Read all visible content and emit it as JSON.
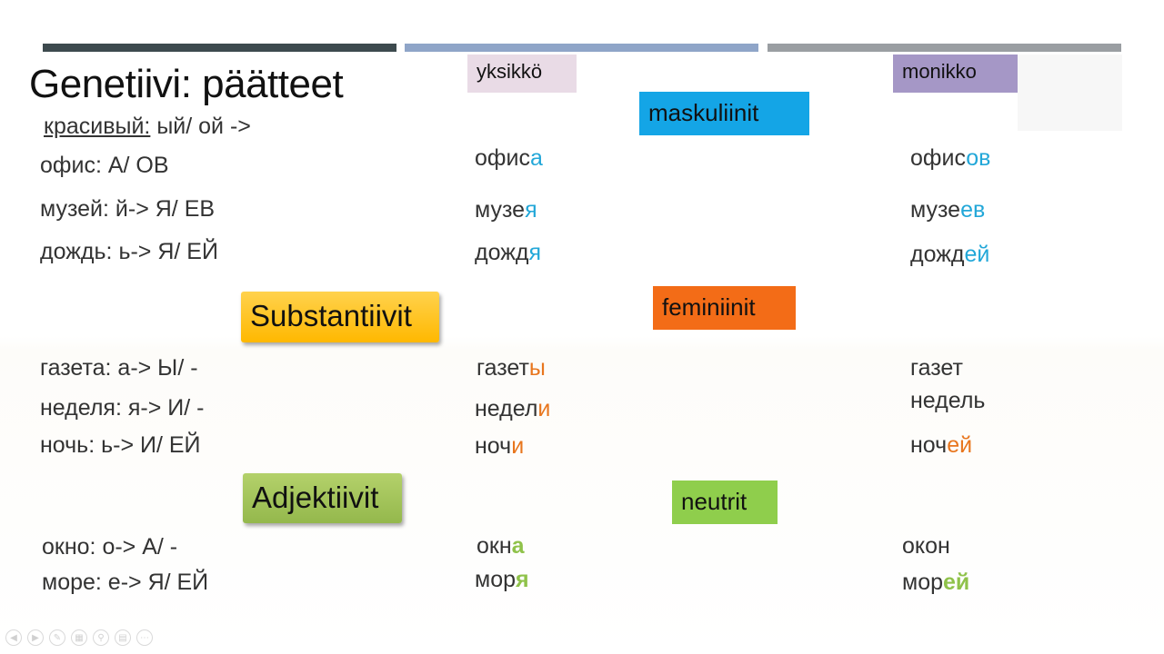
{
  "title": "Genetiivi: päätteet",
  "headers": {
    "singular": "yksikkö",
    "plural": "monikko"
  },
  "categories": {
    "nouns": "Substantiivit",
    "adjectives": "Adjektiivit"
  },
  "genders": {
    "masculine": "maskuliinit",
    "feminine": "feminiinit",
    "neuter": "neutrit"
  },
  "adjective_rule": {
    "word": "красивый:",
    "rest": " ый/ ой ->"
  },
  "colors": {
    "bar1": "#3d4a4e",
    "bar2": "#8fa5c8",
    "bar3": "#9a9ea2",
    "singular_tag": "#e9dbe6",
    "plural_tag": "#a597c6",
    "masc": "#14a5e6",
    "fem": "#f36c17",
    "neut": "#8fce4c",
    "nouns_btn": "#ffc000",
    "adj_btn": "#9bbb59"
  },
  "masculine_rows": [
    {
      "rule": "офис: А/ ОВ",
      "sg_stem": "офис",
      "sg_end": "а",
      "pl_stem": "офис",
      "pl_end": "ов"
    },
    {
      "rule": "музей: й-> Я/ ЕВ",
      "sg_stem": "музе",
      "sg_end": "я",
      "pl_stem": "музе",
      "pl_end": "ев"
    },
    {
      "rule": "дождь: ь-> Я/ ЕЙ",
      "sg_stem": "дожд",
      "sg_end": "я",
      "pl_stem": "дожд",
      "pl_end": "ей"
    }
  ],
  "feminine_rows": [
    {
      "rule": "газета: а-> Ы/ -",
      "sg_stem": "газет",
      "sg_end": "ы",
      "pl_stem": "газет",
      "pl_end": ""
    },
    {
      "rule": "неделя: я-> И/ -",
      "sg_stem": "недел",
      "sg_end": "и",
      "pl_stem": "недель",
      "pl_end": ""
    },
    {
      "rule": "ночь: ь-> И/ ЕЙ",
      "sg_stem": "ноч",
      "sg_end": "и",
      "pl_stem": "ноч",
      "pl_end": "ей"
    }
  ],
  "neuter_rows": [
    {
      "rule": "окно: о-> А/ -",
      "sg_stem": "окн",
      "sg_end": "а",
      "pl_stem": "окон",
      "pl_end": ""
    },
    {
      "rule": "море: е-> Я/ ЕЙ",
      "sg_stem": "мор",
      "sg_end": "я",
      "pl_stem": "мор",
      "pl_end": "ей"
    }
  ],
  "player_controls": [
    "previous-icon",
    "play-icon",
    "pen-icon",
    "slides-icon",
    "zoom-icon",
    "subtitles-icon",
    "more-icon"
  ]
}
